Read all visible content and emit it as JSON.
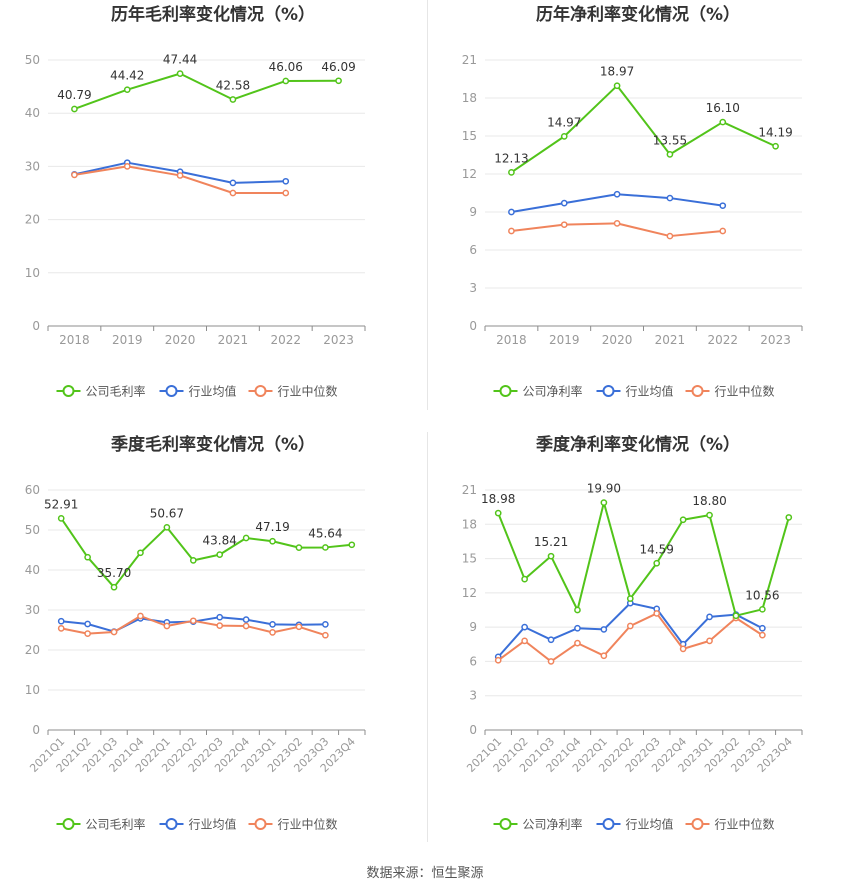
{
  "colors": {
    "company": "#52c41a",
    "industry_avg": "#3a6fd8",
    "industry_median": "#f0845c",
    "grid": "#e8e8e8",
    "axis": "#999999",
    "title": "#333333"
  },
  "source": "数据来源：恒生聚源",
  "chart_data": [
    {
      "type": "line",
      "title": "历年毛利率变化情况（%）",
      "categories": [
        "2018",
        "2019",
        "2020",
        "2021",
        "2022",
        "2023"
      ],
      "ylim": [
        0,
        50
      ],
      "yticks": [
        0,
        10,
        20,
        30,
        40,
        50
      ],
      "series": [
        {
          "name": "公司毛利率",
          "key": "company",
          "values": [
            40.79,
            44.42,
            47.44,
            42.58,
            46.06,
            46.09
          ]
        },
        {
          "name": "行业均值",
          "key": "industry_avg",
          "values": [
            28.5,
            30.7,
            29.0,
            26.9,
            27.2,
            null
          ]
        },
        {
          "name": "行业中位数",
          "key": "industry_median",
          "values": [
            28.4,
            30.0,
            28.3,
            25.0,
            25.0,
            null
          ]
        }
      ],
      "labels": [
        {
          "i": 0,
          "text": "40.79"
        },
        {
          "i": 1,
          "text": "44.42"
        },
        {
          "i": 2,
          "text": "47.44"
        },
        {
          "i": 3,
          "text": "42.58"
        },
        {
          "i": 4,
          "text": "46.06"
        },
        {
          "i": 5,
          "text": "46.09"
        }
      ],
      "rotate_xlabels": false
    },
    {
      "type": "line",
      "title": "历年净利率变化情况（%）",
      "categories": [
        "2018",
        "2019",
        "2020",
        "2021",
        "2022",
        "2023"
      ],
      "ylim": [
        0,
        21
      ],
      "yticks": [
        0,
        3,
        6,
        9,
        12,
        15,
        18,
        21
      ],
      "series": [
        {
          "name": "公司净利率",
          "key": "company",
          "values": [
            12.13,
            14.97,
            18.97,
            13.55,
            16.1,
            14.19
          ]
        },
        {
          "name": "行业均值",
          "key": "industry_avg",
          "values": [
            9.0,
            9.7,
            10.4,
            10.1,
            9.5,
            null
          ]
        },
        {
          "name": "行业中位数",
          "key": "industry_median",
          "values": [
            7.5,
            8.0,
            8.1,
            7.1,
            7.5,
            null
          ]
        }
      ],
      "labels": [
        {
          "i": 0,
          "text": "12.13"
        },
        {
          "i": 1,
          "text": "14.97"
        },
        {
          "i": 2,
          "text": "18.97"
        },
        {
          "i": 3,
          "text": "13.55"
        },
        {
          "i": 4,
          "text": "16.10"
        },
        {
          "i": 5,
          "text": "14.19"
        }
      ],
      "rotate_xlabels": false
    },
    {
      "type": "line",
      "title": "季度毛利率变化情况（%）",
      "categories": [
        "2021Q1",
        "2021Q2",
        "2021Q3",
        "2021Q4",
        "2022Q1",
        "2022Q2",
        "2022Q3",
        "2022Q4",
        "2023Q1",
        "2023Q2",
        "2023Q3",
        "2023Q4"
      ],
      "ylim": [
        0,
        60
      ],
      "yticks": [
        0,
        10,
        20,
        30,
        40,
        50,
        60
      ],
      "series": [
        {
          "name": "公司毛利率",
          "key": "company",
          "values": [
            52.91,
            43.2,
            35.7,
            44.3,
            50.67,
            42.4,
            43.84,
            48.0,
            47.19,
            45.6,
            45.64,
            46.3
          ]
        },
        {
          "name": "行业均值",
          "key": "industry_avg",
          "values": [
            27.2,
            26.5,
            24.6,
            27.9,
            26.9,
            27.1,
            28.2,
            27.6,
            26.4,
            26.3,
            26.4,
            null
          ]
        },
        {
          "name": "行业中位数",
          "key": "industry_median",
          "values": [
            25.4,
            24.1,
            24.5,
            28.5,
            26.0,
            27.3,
            26.1,
            26.0,
            24.4,
            25.8,
            23.7,
            null
          ]
        }
      ],
      "labels": [
        {
          "i": 0,
          "text": "52.91"
        },
        {
          "i": 2,
          "text": "35.70"
        },
        {
          "i": 4,
          "text": "50.67"
        },
        {
          "i": 6,
          "text": "43.84"
        },
        {
          "i": 8,
          "text": "47.19"
        },
        {
          "i": 10,
          "text": "45.64"
        }
      ],
      "rotate_xlabels": true
    },
    {
      "type": "line",
      "title": "季度净利率变化情况（%）",
      "categories": [
        "2021Q1",
        "2021Q2",
        "2021Q3",
        "2021Q4",
        "2022Q1",
        "2022Q2",
        "2022Q3",
        "2022Q4",
        "2023Q1",
        "2023Q2",
        "2023Q3",
        "2023Q4"
      ],
      "ylim": [
        0,
        21
      ],
      "yticks": [
        0,
        3,
        6,
        9,
        12,
        15,
        18,
        21
      ],
      "series": [
        {
          "name": "公司净利率",
          "key": "company",
          "values": [
            18.98,
            13.2,
            15.21,
            10.5,
            19.9,
            11.5,
            14.59,
            18.4,
            18.8,
            10.0,
            10.56,
            18.6
          ]
        },
        {
          "name": "行业均值",
          "key": "industry_avg",
          "values": [
            6.4,
            9.0,
            7.9,
            8.9,
            8.8,
            11.1,
            10.6,
            7.5,
            9.9,
            10.1,
            8.9,
            null
          ]
        },
        {
          "name": "行业中位数",
          "key": "industry_median",
          "values": [
            6.1,
            7.8,
            6.0,
            7.6,
            6.5,
            9.1,
            10.2,
            7.1,
            7.8,
            9.8,
            8.3,
            null
          ]
        }
      ],
      "labels": [
        {
          "i": 0,
          "text": "18.98"
        },
        {
          "i": 2,
          "text": "15.21"
        },
        {
          "i": 4,
          "text": "19.90"
        },
        {
          "i": 6,
          "text": "14.59"
        },
        {
          "i": 8,
          "text": "18.80"
        },
        {
          "i": 10,
          "text": "10.56"
        }
      ],
      "rotate_xlabels": true
    }
  ]
}
